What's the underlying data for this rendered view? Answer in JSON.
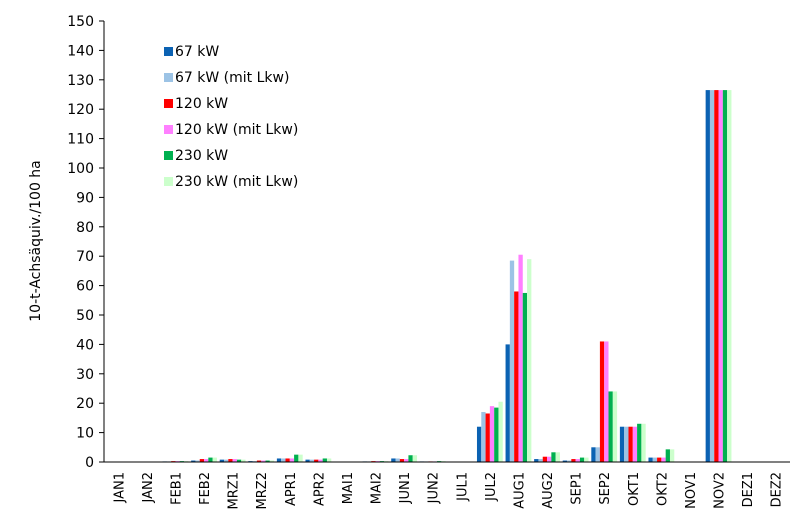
{
  "chart_data": {
    "type": "bar",
    "title": "",
    "xlabel": "",
    "ylabel": "10-t-Achsäquiv./100 ha",
    "ylim": [
      0,
      150
    ],
    "yticks": [
      0,
      10,
      20,
      30,
      40,
      50,
      60,
      70,
      80,
      90,
      100,
      110,
      120,
      130,
      140,
      150
    ],
    "grid": false,
    "legend_position": "top-left",
    "categories": [
      "JAN1",
      "JAN2",
      "FEB1",
      "FEB2",
      "MRZ1",
      "MRZ2",
      "APR1",
      "APR2",
      "MAI1",
      "MAI2",
      "JUN1",
      "JUN2",
      "JUL1",
      "JUL2",
      "AUG1",
      "AUG2",
      "SEP1",
      "SEP2",
      "OKT1",
      "OKT2",
      "NOV1",
      "NOV2",
      "DEZ1",
      "DEZ2"
    ],
    "series": [
      {
        "name": "67 kW",
        "color": "#0b62b3",
        "values": [
          0,
          0,
          0.2,
          0.5,
          0.8,
          0.3,
          1.2,
          0.8,
          0,
          0.2,
          1.2,
          0.2,
          0,
          12,
          40,
          1,
          0.5,
          5,
          12,
          1.5,
          0,
          126.5,
          0,
          0
        ]
      },
      {
        "name": "67 kW (mit Lkw)",
        "color": "#9cc3e5",
        "values": [
          0,
          0,
          0.2,
          0.5,
          0.8,
          0.3,
          1.2,
          0.8,
          0,
          0.2,
          1.2,
          0.2,
          0,
          17,
          68.5,
          1,
          0.5,
          5,
          12,
          1.5,
          0,
          126.5,
          0,
          0
        ]
      },
      {
        "name": "120 kW",
        "color": "#ff0000",
        "values": [
          0,
          0,
          0.3,
          1,
          1,
          0.5,
          1.2,
          0.8,
          0,
          0.3,
          1,
          0.2,
          0,
          16.5,
          58,
          1.8,
          1,
          41,
          12,
          1.5,
          0,
          126.5,
          0,
          0
        ]
      },
      {
        "name": "120 kW (mit Lkw)",
        "color": "#ff80ff",
        "values": [
          0,
          0,
          0.3,
          1,
          1,
          0.5,
          1.2,
          0.8,
          0,
          0.3,
          1,
          0.2,
          0,
          19,
          70.5,
          1.8,
          1,
          41,
          12,
          1.5,
          0,
          126.5,
          0,
          0
        ]
      },
      {
        "name": "230 kW",
        "color": "#00b050",
        "values": [
          0,
          0,
          0.3,
          1.5,
          0.8,
          0.5,
          2.5,
          1.2,
          0,
          0.3,
          2.3,
          0.3,
          0,
          18.5,
          57.5,
          3.3,
          1.5,
          24,
          13,
          4.3,
          0,
          126.5,
          0,
          0
        ]
      },
      {
        "name": "230 kW (mit Lkw)",
        "color": "#ccffcc",
        "values": [
          0,
          0,
          0.3,
          1.5,
          0.8,
          0.5,
          2.5,
          1.2,
          0,
          0.3,
          2.3,
          0.3,
          0,
          20.5,
          69,
          3.3,
          1.5,
          24,
          13,
          4.3,
          0,
          126.5,
          0,
          0
        ]
      }
    ]
  }
}
